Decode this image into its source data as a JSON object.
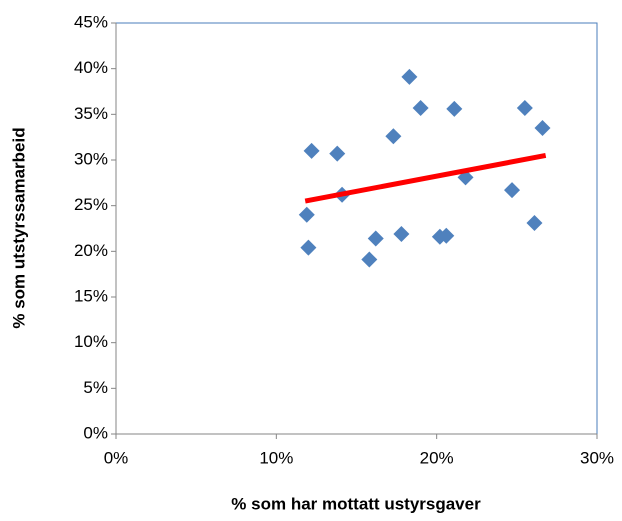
{
  "chart_data": {
    "type": "scatter",
    "xlabel": "% som har mottatt ustyrsgaver",
    "ylabel": "% som utstyrssamarbeid",
    "xlim": [
      0,
      30
    ],
    "ylim": [
      0,
      45
    ],
    "xticks": [
      {
        "value": 0,
        "label": "0%"
      },
      {
        "value": 10,
        "label": "10%"
      },
      {
        "value": 20,
        "label": "20%"
      },
      {
        "value": 30,
        "label": "30%"
      }
    ],
    "yticks": [
      {
        "value": 0,
        "label": "0%"
      },
      {
        "value": 5,
        "label": "5%"
      },
      {
        "value": 10,
        "label": "10%"
      },
      {
        "value": 15,
        "label": "15%"
      },
      {
        "value": 20,
        "label": "20%"
      },
      {
        "value": 25,
        "label": "25%"
      },
      {
        "value": 30,
        "label": "30%"
      },
      {
        "value": 35,
        "label": "35%"
      },
      {
        "value": 40,
        "label": "40%"
      },
      {
        "value": 45,
        "label": "45%"
      }
    ],
    "color": "#4f81bd",
    "x": [
      12.0,
      11.9,
      12.2,
      13.8,
      14.1,
      15.8,
      16.2,
      17.3,
      17.8,
      18.3,
      19.0,
      20.2,
      20.6,
      21.1,
      21.8,
      24.7,
      25.5,
      26.1,
      26.6
    ],
    "y": [
      20.4,
      24.0,
      31.0,
      30.7,
      26.2,
      19.1,
      21.4,
      32.6,
      21.9,
      39.1,
      35.7,
      21.6,
      21.7,
      35.6,
      28.1,
      26.7,
      35.7,
      23.1,
      33.5
    ],
    "trendline": {
      "x": [
        11.8,
        26.8
      ],
      "y": [
        25.5,
        30.5
      ],
      "color": "#ff0000"
    }
  }
}
